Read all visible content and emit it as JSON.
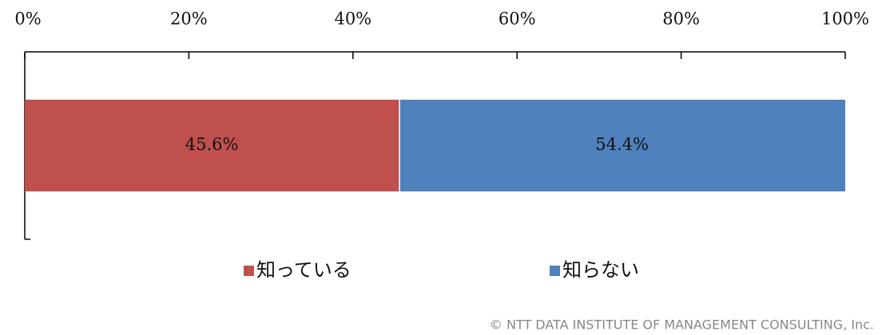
{
  "chart_data": {
    "type": "stacked_bar_horizontal",
    "xlim": [
      0,
      100
    ],
    "xticks": [
      {
        "value": 0,
        "label": "0%"
      },
      {
        "value": 20,
        "label": "20%"
      },
      {
        "value": 40,
        "label": "40%"
      },
      {
        "value": 60,
        "label": "60%"
      },
      {
        "value": 80,
        "label": "80%"
      },
      {
        "value": 100,
        "label": "100%"
      }
    ],
    "series": [
      {
        "name": "知っている",
        "color": "#c0504d",
        "values": [
          45.6
        ],
        "value_labels": [
          "45.6%"
        ]
      },
      {
        "name": "知らない",
        "color": "#4f81bd",
        "values": [
          54.4
        ],
        "value_labels": [
          "54.4%"
        ]
      }
    ],
    "legend": "bottom",
    "credit": "© NTT DATA INSTITUTE OF MANAGEMENT CONSULTING, Inc."
  }
}
